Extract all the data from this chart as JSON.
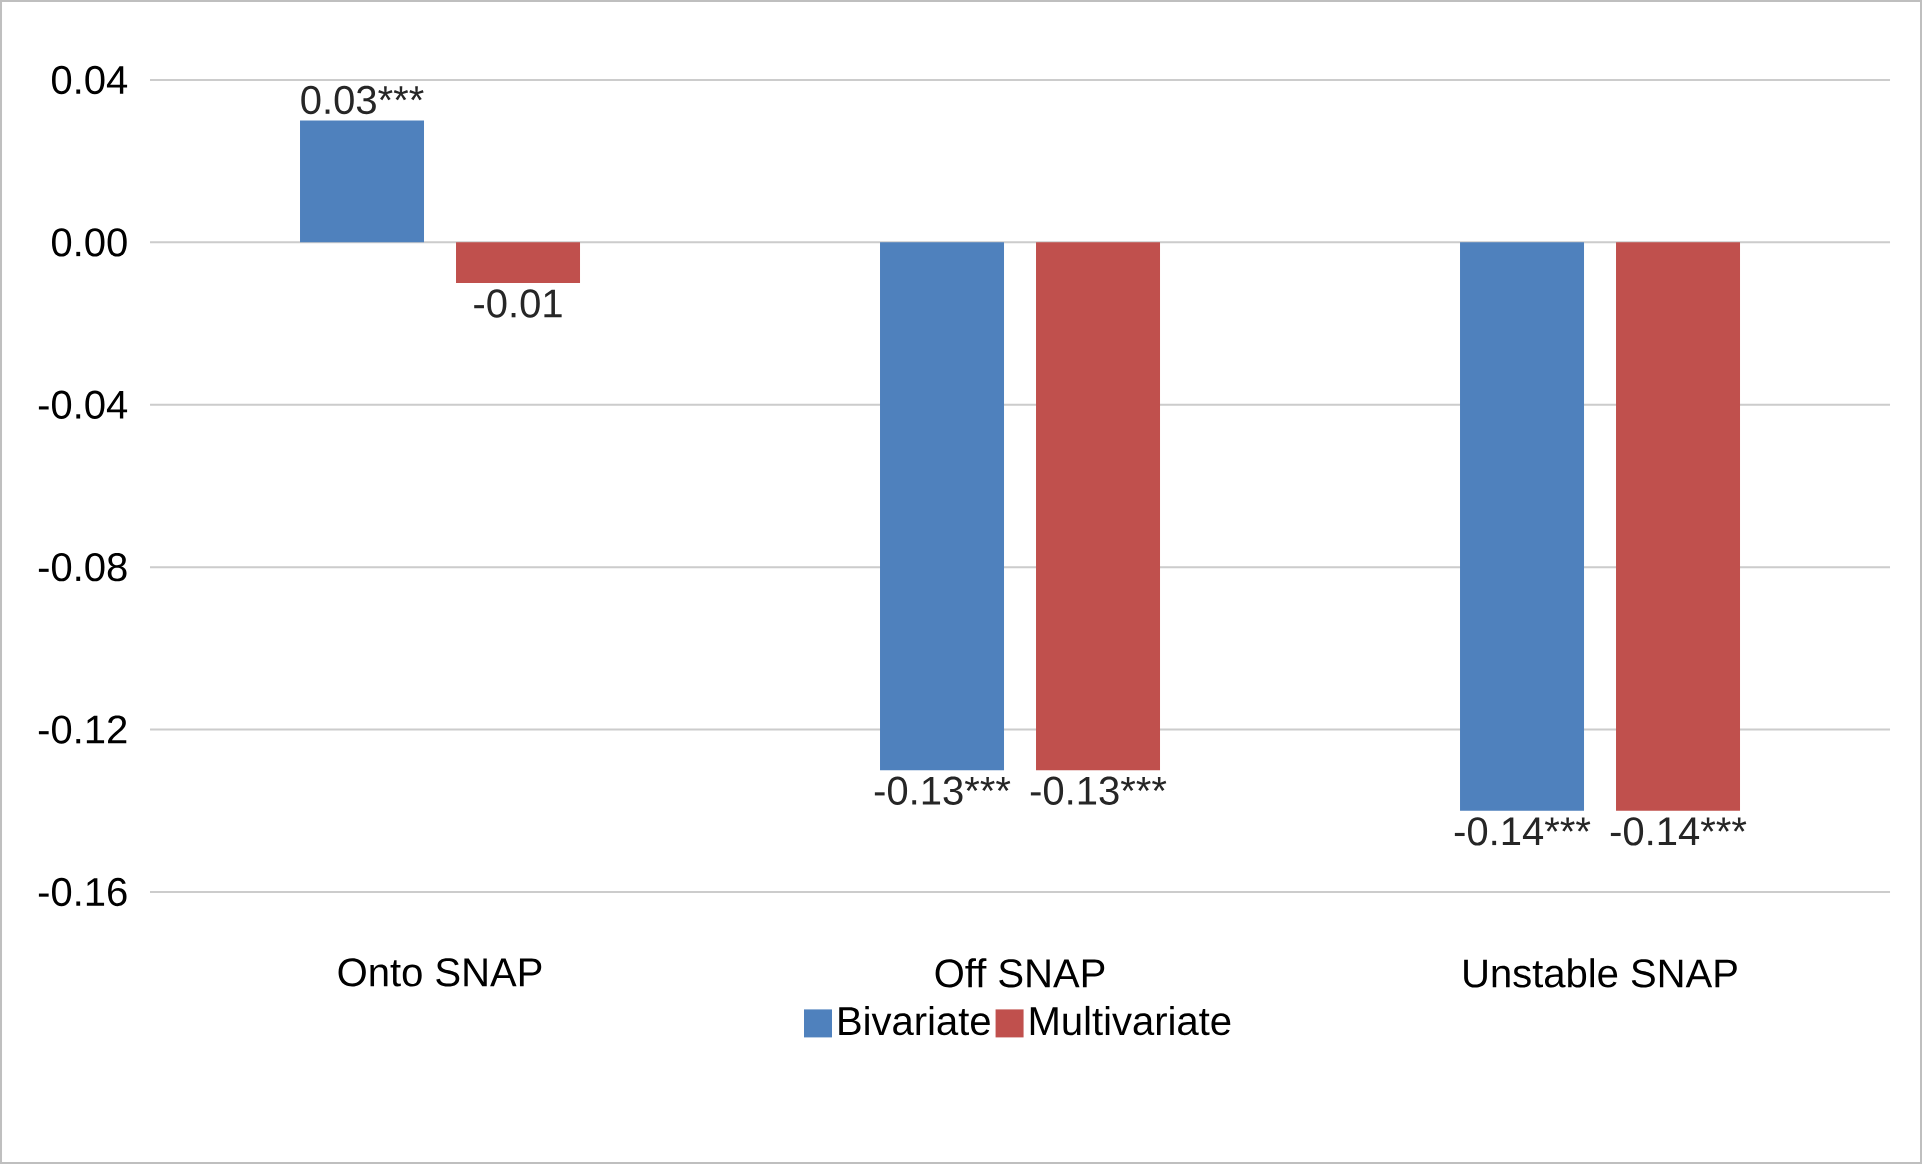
{
  "chart_data": {
    "type": "bar",
    "categories": [
      "Onto SNAP",
      "Off SNAP",
      "Unstable SNAP"
    ],
    "series": [
      {
        "name": "Bivariate",
        "color": "#4f81bd",
        "values": [
          0.03,
          -0.13,
          -0.14
        ],
        "value_labels": [
          "0.03***",
          "-0.13***",
          "-0.14***"
        ]
      },
      {
        "name": "Multivariate",
        "color": "#c0504d",
        "values": [
          -0.01,
          -0.13,
          -0.14
        ],
        "value_labels": [
          "-0.01",
          "-0.13***",
          "-0.14***"
        ]
      }
    ],
    "ylim": [
      -0.16,
      0.04
    ],
    "yticks": [
      {
        "value": -0.16,
        "label": "-0.16"
      },
      {
        "value": -0.12,
        "label": "-0.12"
      },
      {
        "value": -0.08,
        "label": "-0.08"
      },
      {
        "value": -0.04,
        "label": "-0.04"
      },
      {
        "value": 0,
        "label": "0.00"
      },
      {
        "value": 0.04,
        "label": "0.04"
      }
    ],
    "grid": "y",
    "legend": "bottom"
  }
}
